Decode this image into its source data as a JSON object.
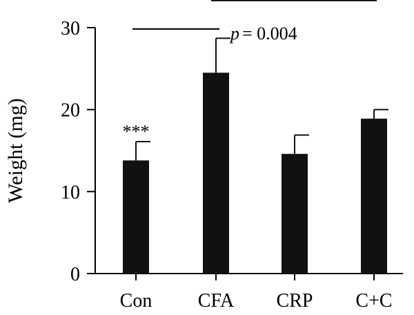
{
  "chart_data": {
    "type": "bar",
    "title": "",
    "xlabel": "",
    "ylabel": "Weight (mg)",
    "ylim": [
      0,
      30
    ],
    "yticks": [
      0,
      10,
      20,
      30
    ],
    "categories": [
      "Con",
      "CFA",
      "CRP",
      "C+C"
    ],
    "values": [
      13.8,
      24.5,
      14.6,
      18.9
    ],
    "errors": [
      2.3,
      4.2,
      2.3,
      1.1
    ],
    "grid": false,
    "colors": {
      "bar": "#111111",
      "axis": "#000000"
    },
    "annotations": {
      "con_significance": "***",
      "comparison_p": "= 0.004",
      "comparison_p_symbol": "p"
    }
  }
}
